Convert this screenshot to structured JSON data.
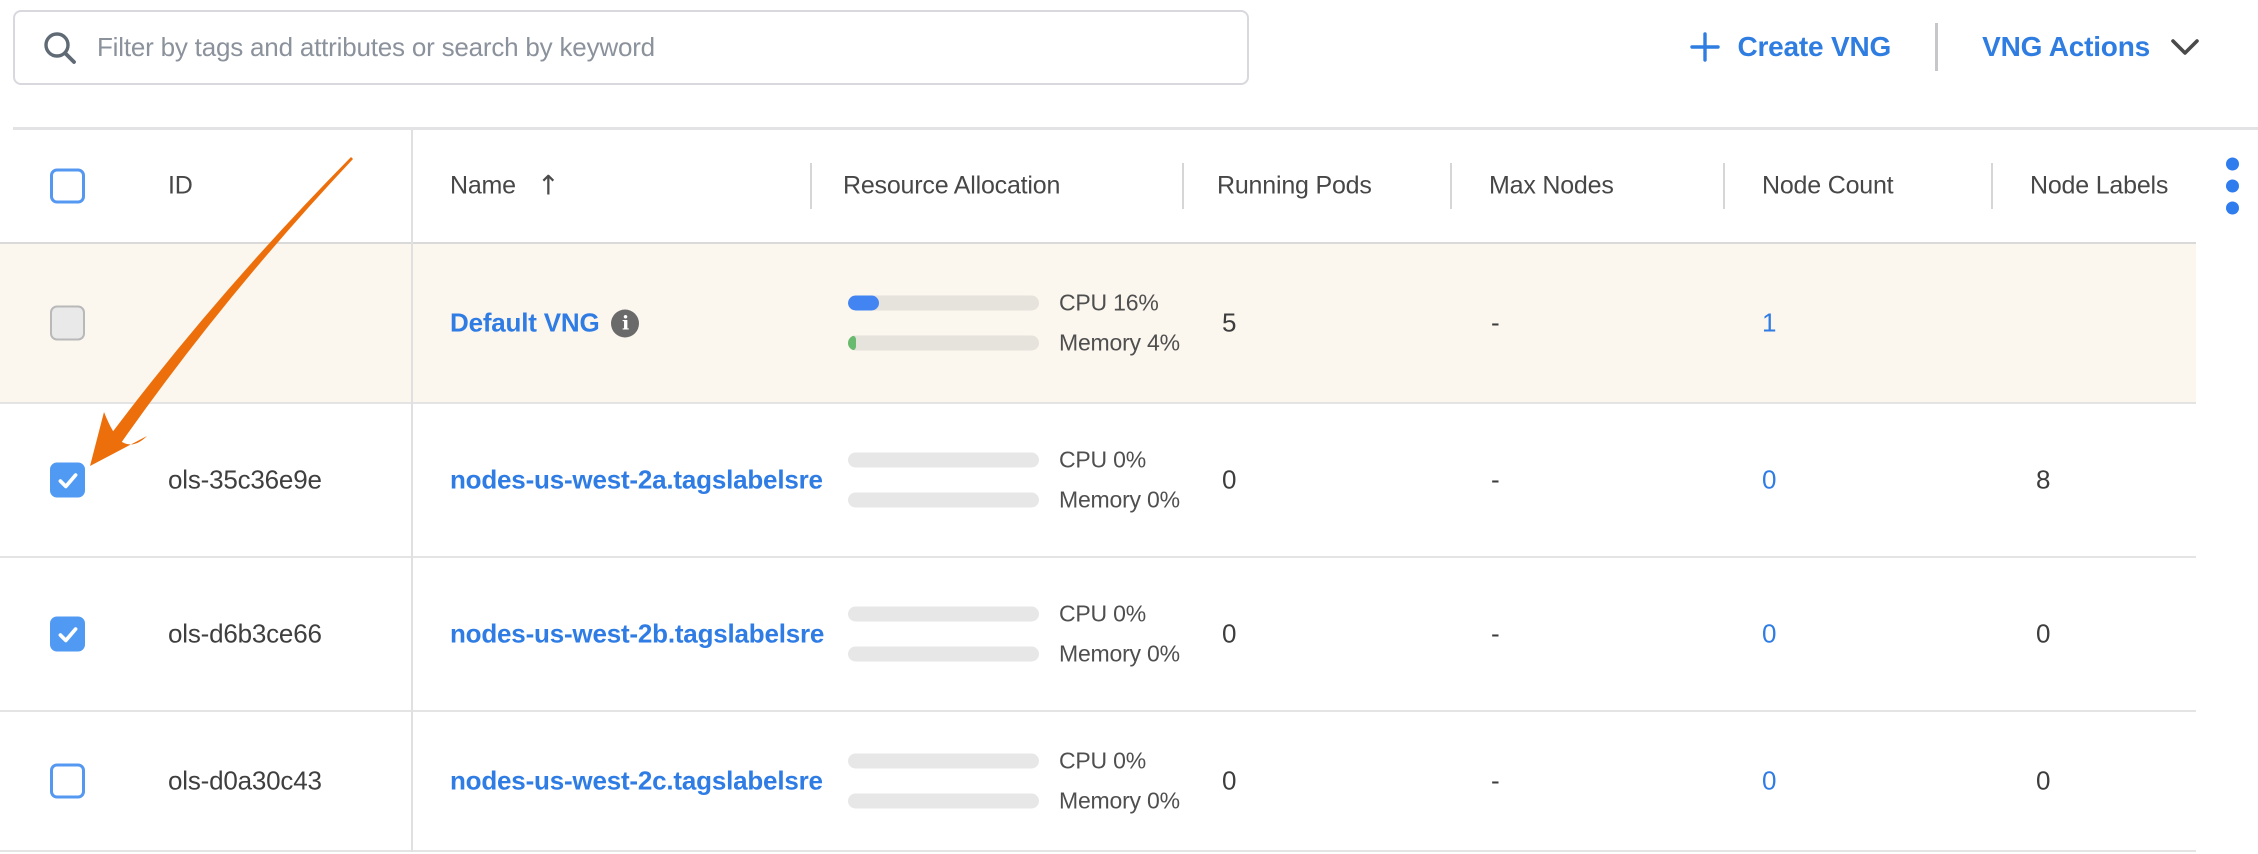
{
  "toolbar": {
    "search_placeholder": "Filter by tags and attributes or search by keyword",
    "create_button": "Create VNG",
    "actions_button": "VNG Actions"
  },
  "table": {
    "columns": [
      "ID",
      "Name",
      "Resource Allocation",
      "Running Pods",
      "Max Nodes",
      "Node Count",
      "Node Labels"
    ],
    "sorted_column": "Name",
    "sort_direction": "ascending",
    "sort_arrow": "↑",
    "rows": [
      {
        "id": "",
        "name": "Default VNG",
        "has_info_icon": true,
        "highlighted": true,
        "checked": false,
        "disabled": true,
        "cpu_pct": 16,
        "cpu_label": "CPU 16%",
        "mem_pct": 4,
        "mem_label": "Memory 4%",
        "running_pods": "5",
        "max_nodes": "-",
        "node_count": "1",
        "node_labels": ""
      },
      {
        "id": "ols-35c36e9e",
        "name": "nodes-us-west-2a.tagslabelsre",
        "has_info_icon": false,
        "highlighted": false,
        "checked": true,
        "disabled": false,
        "cpu_pct": 0,
        "cpu_label": "CPU 0%",
        "mem_pct": 0,
        "mem_label": "Memory 0%",
        "running_pods": "0",
        "max_nodes": "-",
        "node_count": "0",
        "node_labels": "8"
      },
      {
        "id": "ols-d6b3ce66",
        "name": "nodes-us-west-2b.tagslabelsre",
        "has_info_icon": false,
        "highlighted": false,
        "checked": true,
        "disabled": false,
        "cpu_pct": 0,
        "cpu_label": "CPU 0%",
        "mem_pct": 0,
        "mem_label": "Memory 0%",
        "running_pods": "0",
        "max_nodes": "-",
        "node_count": "0",
        "node_labels": "0"
      },
      {
        "id": "ols-d0a30c43",
        "name": "nodes-us-west-2c.tagslabelsre",
        "has_info_icon": false,
        "highlighted": false,
        "checked": false,
        "disabled": false,
        "cpu_pct": 0,
        "cpu_label": "CPU 0%",
        "mem_pct": 0,
        "mem_label": "Memory 0%",
        "running_pods": "0",
        "max_nodes": "-",
        "node_count": "0",
        "node_labels": "0"
      }
    ]
  },
  "annotation": {
    "type": "arrow",
    "color": "#ec6f0c",
    "points_to": "checkbox of row ols-35c36e9e"
  },
  "colors": {
    "accent_blue": "#2f7de1",
    "link_blue": "#2e7ce4",
    "checkbox_blue": "#519af3",
    "cpu_bar": "#4285f2",
    "memory_bar": "#68ba6e",
    "highlight_row": "#fbf6ee",
    "border_gray": "#e4e4e4"
  }
}
